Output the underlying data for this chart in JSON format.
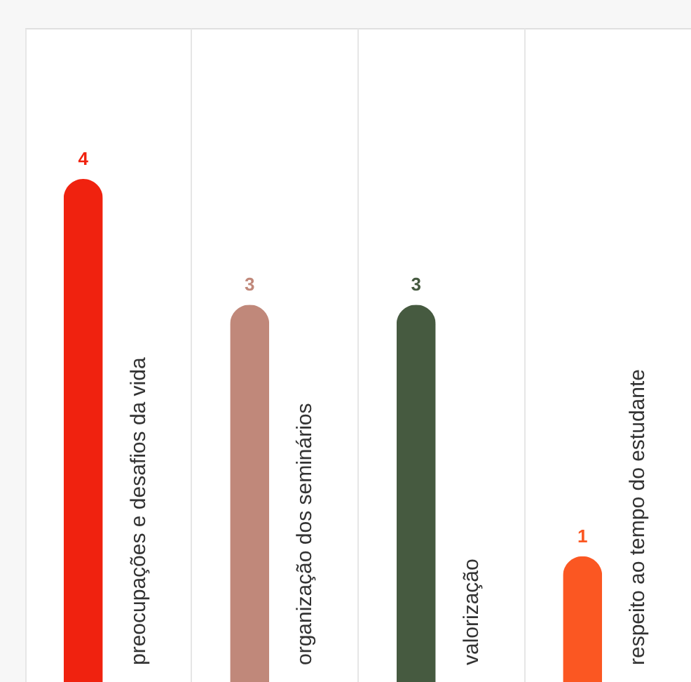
{
  "chart_data": {
    "type": "bar",
    "categories": [
      "preocupações e desafios da vida",
      "organização dos seminários",
      "valorização",
      "respeito ao tempo do estudante"
    ],
    "values": [
      4,
      3,
      3,
      1
    ],
    "colors": [
      "#f0220f",
      "#c0887a",
      "#465a40",
      "#fb5722"
    ],
    "data_labels": true,
    "grid": "x",
    "tick_labels": false
  }
}
